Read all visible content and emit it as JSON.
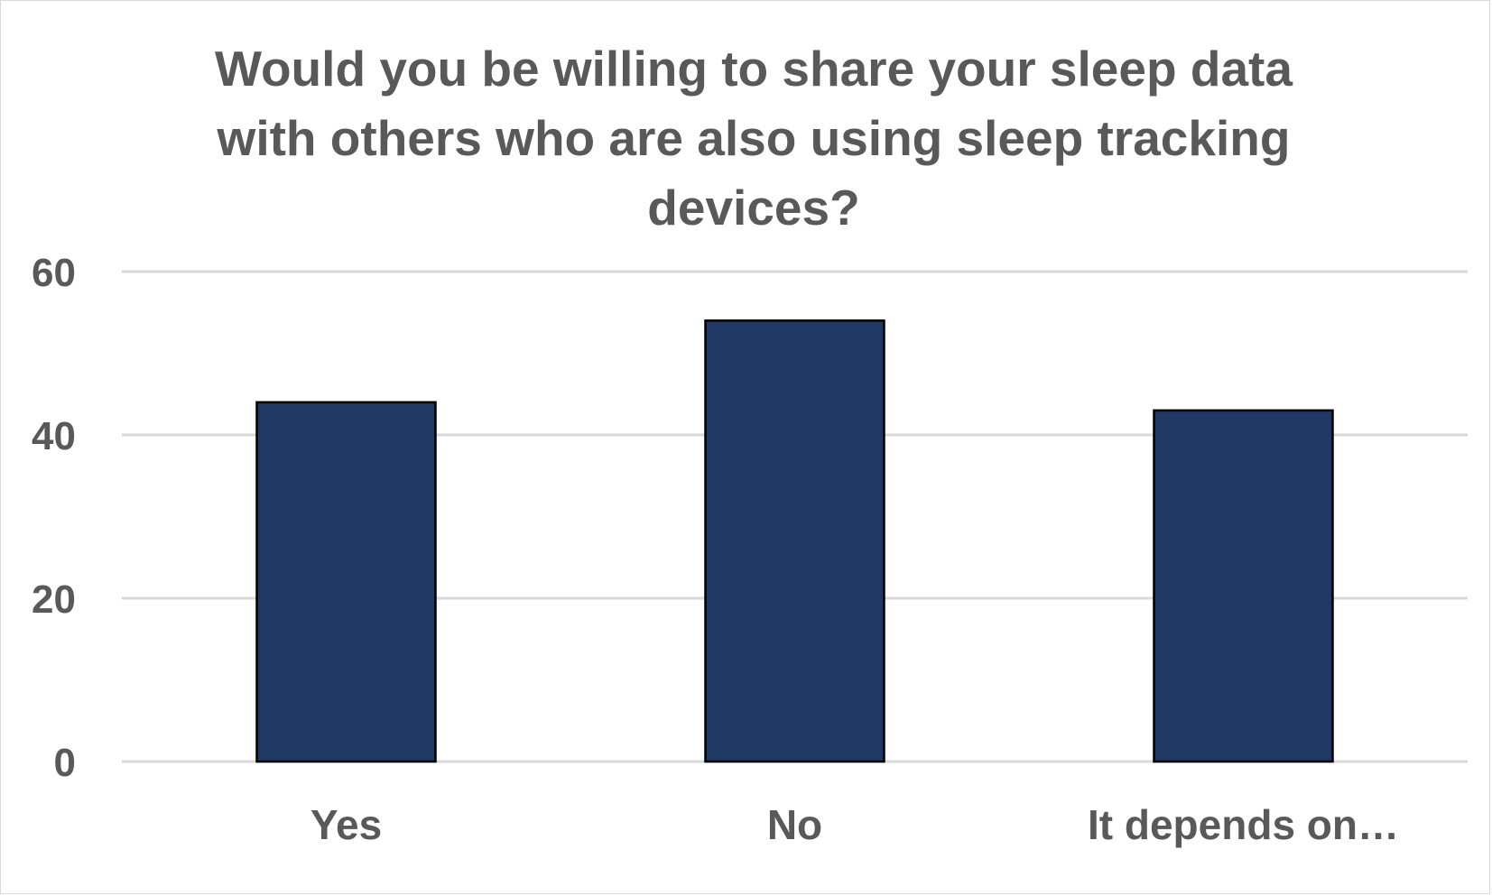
{
  "chart_data": {
    "type": "bar",
    "title": "Would you be willing to share your sleep data with others who are also using sleep tracking devices?",
    "categories": [
      "Yes",
      "No",
      "It depends on…"
    ],
    "values": [
      44,
      54,
      43
    ],
    "ylim": [
      0,
      60
    ],
    "yticks": [
      0,
      20,
      40,
      60
    ],
    "grid": true,
    "bar_color": "#203864",
    "bar_outline_color": "#000000",
    "grid_color": "#d9d9d9",
    "text_color": "#595959",
    "xlabel": "",
    "ylabel": ""
  }
}
